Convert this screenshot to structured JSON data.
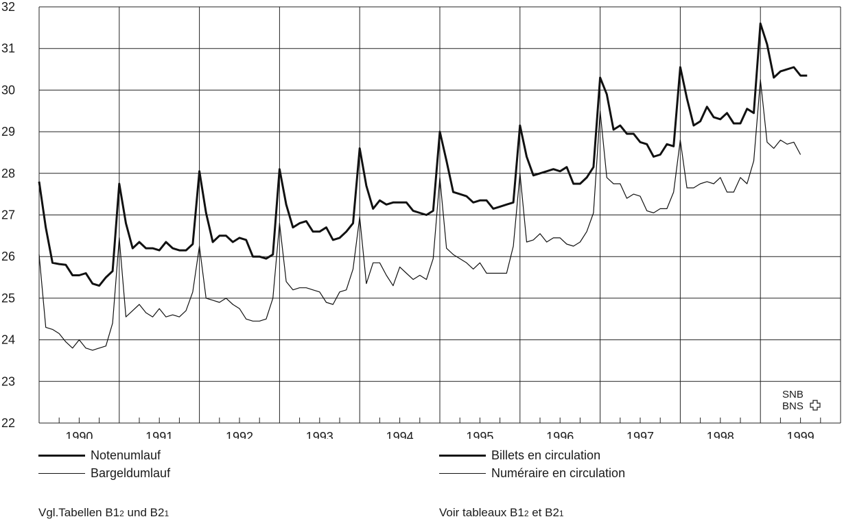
{
  "chart_data": {
    "type": "line",
    "ylim": [
      22,
      32
    ],
    "yticks": [
      "22",
      "23",
      "24",
      "25",
      "26",
      "27",
      "28",
      "29",
      "30",
      "31",
      "32"
    ],
    "year_labels": [
      "1990",
      "1991",
      "1992",
      "1993",
      "1994",
      "1995",
      "1996",
      "1997",
      "1998",
      "1999"
    ],
    "x_start": "1990-01",
    "grid": true,
    "series": [
      {
        "name": "Notenumlauf",
        "name_fr": "Billets en circulation",
        "style": "thick",
        "values": [
          27.8,
          26.7,
          25.85,
          25.82,
          25.8,
          25.55,
          25.55,
          25.6,
          25.35,
          25.3,
          25.5,
          25.65,
          27.75,
          26.8,
          26.2,
          26.35,
          26.2,
          26.2,
          26.15,
          26.35,
          26.2,
          26.15,
          26.15,
          26.3,
          28.05,
          27.05,
          26.35,
          26.5,
          26.5,
          26.35,
          26.45,
          26.4,
          26.0,
          26.0,
          25.95,
          26.05,
          28.1,
          27.25,
          26.7,
          26.8,
          26.85,
          26.6,
          26.6,
          26.7,
          26.4,
          26.45,
          26.6,
          26.8,
          28.6,
          27.7,
          27.15,
          27.35,
          27.25,
          27.3,
          27.3,
          27.3,
          27.1,
          27.05,
          27.0,
          27.1,
          29.0,
          28.3,
          27.55,
          27.5,
          27.45,
          27.3,
          27.35,
          27.35,
          27.15,
          27.2,
          27.25,
          27.3,
          29.15,
          28.4,
          27.95,
          28.0,
          28.05,
          28.1,
          28.05,
          28.15,
          27.75,
          27.75,
          27.9,
          28.15,
          30.3,
          29.9,
          29.05,
          29.15,
          28.95,
          28.95,
          28.75,
          28.7,
          28.4,
          28.45,
          28.7,
          28.65,
          30.55,
          29.8,
          29.15,
          29.25,
          29.6,
          29.35,
          29.3,
          29.45,
          29.2,
          29.2,
          29.55,
          29.45,
          31.6,
          31.1,
          30.3,
          30.45,
          30.5,
          30.55,
          30.35,
          30.35
        ]
      },
      {
        "name": "Bargeldumlauf",
        "name_fr": "Numéraire en circulation",
        "style": "thin",
        "values": [
          26.05,
          24.3,
          24.25,
          24.15,
          23.95,
          23.8,
          24.0,
          23.8,
          23.75,
          23.8,
          23.85,
          24.4,
          26.45,
          24.55,
          24.7,
          24.85,
          24.65,
          24.55,
          24.75,
          24.55,
          24.6,
          24.55,
          24.7,
          25.15,
          26.25,
          25.0,
          24.95,
          24.9,
          25.0,
          24.85,
          24.75,
          24.5,
          24.45,
          24.45,
          24.5,
          25.0,
          26.8,
          25.4,
          25.2,
          25.25,
          25.25,
          25.2,
          25.15,
          24.9,
          24.85,
          25.15,
          25.2,
          25.7,
          26.95,
          25.35,
          25.85,
          25.85,
          25.55,
          25.3,
          25.75,
          25.6,
          25.45,
          25.55,
          25.45,
          25.95,
          27.9,
          26.2,
          26.05,
          25.95,
          25.85,
          25.7,
          25.85,
          25.6,
          25.6,
          25.6,
          25.6,
          26.25,
          28.0,
          26.35,
          26.4,
          26.55,
          26.35,
          26.45,
          26.45,
          26.3,
          26.25,
          26.35,
          26.6,
          27.05,
          29.5,
          27.9,
          27.75,
          27.75,
          27.4,
          27.5,
          27.45,
          27.1,
          27.05,
          27.15,
          27.15,
          27.55,
          28.8,
          27.65,
          27.65,
          27.75,
          27.8,
          27.75,
          27.9,
          27.55,
          27.55,
          27.9,
          27.75,
          28.3,
          30.25,
          28.75,
          28.6,
          28.8,
          28.7,
          28.75,
          28.45
        ]
      }
    ],
    "logo": [
      "SNB",
      "BNS"
    ]
  },
  "legend": {
    "de": [
      "Notenumlauf",
      "Bargeldumlauf"
    ],
    "fr": [
      "Billets en circulation",
      "Numéraire en circulation"
    ]
  },
  "notes": {
    "de": {
      "prefix": "Vgl.Tabellen B1",
      "sub1": "2",
      "mid": " und B2",
      "sub2": "1"
    },
    "fr": {
      "prefix": "Voir tableaux B1",
      "sub1": "2",
      "mid": " et B2",
      "sub2": "1"
    }
  }
}
